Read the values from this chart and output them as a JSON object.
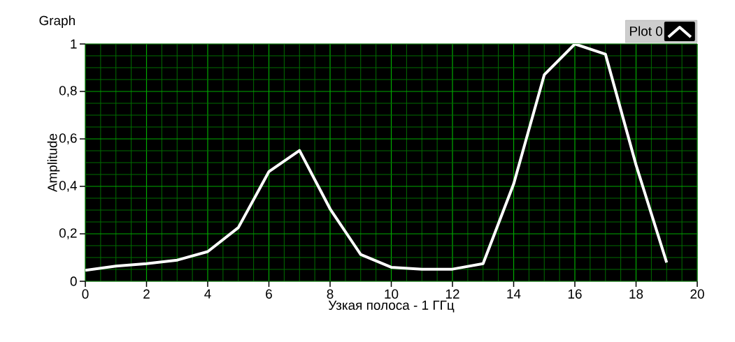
{
  "chart_data": {
    "type": "line",
    "title": "Graph",
    "xlabel": "Узкая полоса - 1 ГГц",
    "ylabel": "Amplitude",
    "x": [
      0,
      1,
      2,
      3,
      4,
      5,
      6,
      7,
      8,
      9,
      10,
      11,
      12,
      13,
      14,
      15,
      16,
      17,
      18,
      19
    ],
    "series": [
      {
        "name": "Plot 0",
        "color": "#ffffff",
        "values": [
          0.046,
          0.064,
          0.074,
          0.089,
          0.125,
          0.226,
          0.462,
          0.551,
          0.305,
          0.113,
          0.059,
          0.051,
          0.051,
          0.074,
          0.41,
          0.87,
          1.0,
          0.957,
          0.49,
          0.079
        ]
      }
    ],
    "xlim": [
      0,
      20
    ],
    "ylim": [
      0,
      1
    ],
    "xticks": [
      0,
      {
        "value": 0.5,
        "label": null
      },
      {
        "value": 1,
        "label": null
      },
      {
        "value": 1.5,
        "label": null
      },
      2,
      {
        "value": 2.5,
        "label": null
      },
      {
        "value": 3,
        "label": null
      },
      {
        "value": 3.5,
        "label": null
      },
      4,
      {
        "value": 4.5,
        "label": null
      },
      {
        "value": 5,
        "label": null
      },
      {
        "value": 5.5,
        "label": null
      },
      6,
      {
        "value": 6.5,
        "label": null
      },
      {
        "value": 7,
        "label": null
      },
      {
        "value": 7.5,
        "label": null
      },
      8,
      {
        "value": 8.5,
        "label": null
      },
      {
        "value": 9,
        "label": null
      },
      {
        "value": 9.5,
        "label": null
      },
      10,
      {
        "value": 10.5,
        "label": null
      },
      {
        "value": 11,
        "label": null
      },
      {
        "value": 11.5,
        "label": null
      },
      12,
      {
        "value": 12.5,
        "label": null
      },
      {
        "value": 13,
        "label": null
      },
      {
        "value": 13.5,
        "label": null
      },
      14,
      {
        "value": 14.5,
        "label": null
      },
      {
        "value": 15,
        "label": null
      },
      {
        "value": 15.5,
        "label": null
      },
      16,
      {
        "value": 16.5,
        "label": null
      },
      {
        "value": 17,
        "label": null
      },
      {
        "value": 17.5,
        "label": null
      },
      18,
      {
        "value": 18.5,
        "label": null
      },
      {
        "value": 19,
        "label": null
      },
      {
        "value": 19.5,
        "label": null
      },
      20
    ],
    "yticks": [
      0,
      {
        "value": 0.05,
        "label": null
      },
      {
        "value": 0.1,
        "label": null
      },
      {
        "value": 0.15,
        "label": null
      },
      {
        "value": 0.2,
        "label": "0,2"
      },
      {
        "value": 0.25,
        "label": null
      },
      {
        "value": 0.3,
        "label": null
      },
      {
        "value": 0.35,
        "label": null
      },
      {
        "value": 0.4,
        "label": "0,4"
      },
      {
        "value": 0.45,
        "label": null
      },
      {
        "value": 0.5,
        "label": null
      },
      {
        "value": 0.55,
        "label": null
      },
      {
        "value": 0.6,
        "label": "0,6"
      },
      {
        "value": 0.65,
        "label": null
      },
      {
        "value": 0.7,
        "label": null
      },
      {
        "value": 0.75,
        "label": null
      },
      {
        "value": 0.8,
        "label": "0,8"
      },
      {
        "value": 0.85,
        "label": null
      },
      {
        "value": 0.9,
        "label": null
      },
      {
        "value": 0.95,
        "label": null
      },
      1
    ],
    "grid": true,
    "legend": "top right",
    "marker": "none",
    "line_style": "solid"
  }
}
